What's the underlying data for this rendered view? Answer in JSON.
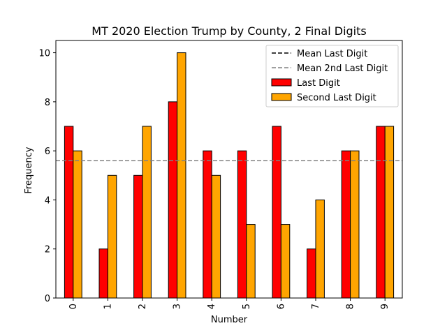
{
  "chart_data": {
    "type": "bar",
    "title": "MT 2020 Election Trump by County, 2 Final Digits",
    "xlabel": "Number",
    "ylabel": "Frequency",
    "categories": [
      "0",
      "1",
      "2",
      "3",
      "4",
      "5",
      "6",
      "7",
      "8",
      "9"
    ],
    "series": [
      {
        "name": "Last Digit",
        "color": "#ff0000",
        "values": [
          7,
          2,
          5,
          8,
          6,
          6,
          7,
          2,
          6,
          7
        ]
      },
      {
        "name": "Second Last Digit",
        "color": "#ffa500",
        "values": [
          6,
          5,
          7,
          10,
          5,
          3,
          3,
          4,
          6,
          7
        ]
      }
    ],
    "reference_lines": [
      {
        "name": "Mean Last Digit",
        "value": 5.6,
        "color": "#000000",
        "style": "dashed"
      },
      {
        "name": "Mean 2nd Last Digit",
        "value": 5.6,
        "color": "#808080",
        "style": "dashed"
      }
    ],
    "ylim": [
      0,
      10.5
    ],
    "yticks": [
      0,
      2,
      4,
      6,
      8,
      10
    ],
    "grid": false,
    "legend_position": "top-right",
    "legend_order": [
      "Mean Last Digit",
      "Mean 2nd Last Digit",
      "Last Digit",
      "Second Last Digit"
    ],
    "x_tick_rotation": "vertical"
  }
}
